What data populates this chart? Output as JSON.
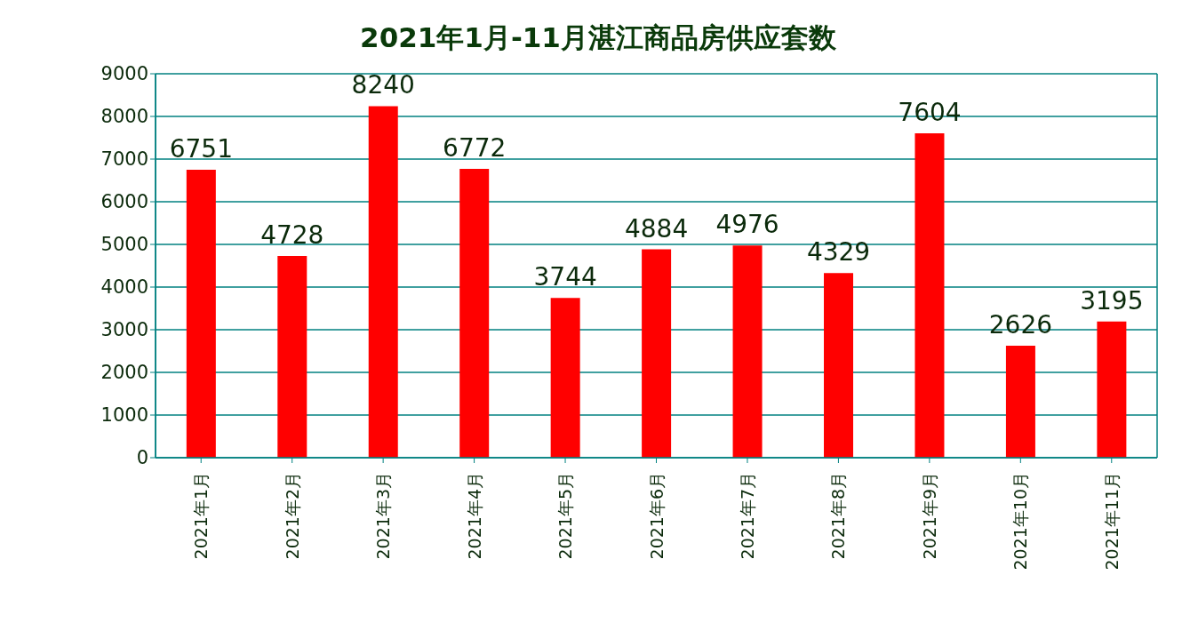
{
  "chart_data": {
    "type": "bar",
    "title": "2021年1月-11月湛江商品房供应套数",
    "categories": [
      "2021年1月",
      "2021年2月",
      "2021年3月",
      "2021年4月",
      "2021年5月",
      "2021年6月",
      "2021年7月",
      "2021年8月",
      "2021年9月",
      "2021年10月",
      "2021年11月"
    ],
    "values": [
      6751,
      4728,
      8240,
      6772,
      3744,
      4884,
      4976,
      4329,
      7604,
      2626,
      3195
    ],
    "color": "#ff0000",
    "ylim": [
      0,
      9000
    ],
    "yticks": [
      0,
      1000,
      2000,
      3000,
      4000,
      5000,
      6000,
      7000,
      8000,
      9000
    ],
    "grid": "y",
    "data_labels": true
  }
}
